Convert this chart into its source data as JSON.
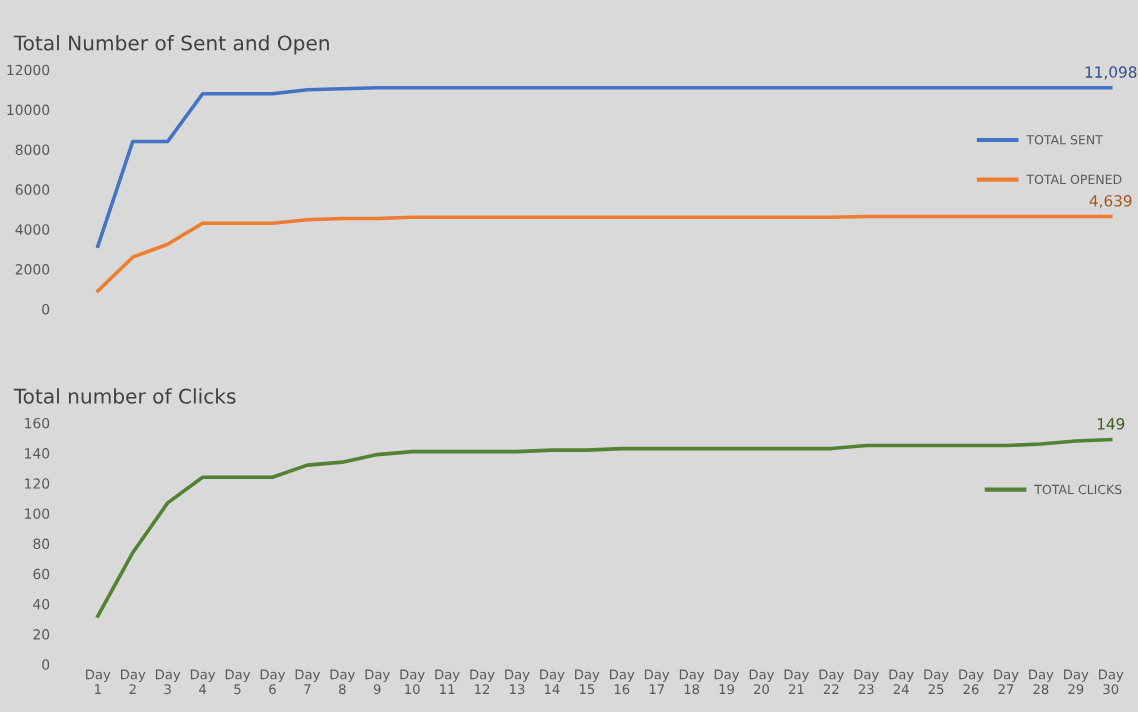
{
  "chart_data": [
    {
      "type": "line",
      "title": "Total Number of Sent and Open",
      "categories": [
        null,
        null,
        null,
        null,
        null,
        null,
        null,
        null,
        null,
        null,
        null,
        null,
        null,
        null,
        null,
        null,
        null,
        null,
        null,
        null,
        null,
        null,
        null,
        null,
        null,
        null,
        null,
        null,
        null,
        null
      ],
      "series": [
        {
          "name": "TOTAL SENT",
          "color": "#4472c4",
          "values": [
            3150,
            8400,
            8400,
            10800,
            10800,
            10800,
            11000,
            11050,
            11098,
            11098,
            11098,
            11098,
            11098,
            11098,
            11098,
            11098,
            11098,
            11098,
            11098,
            11098,
            11098,
            11098,
            11098,
            11098,
            11098,
            11098,
            11098,
            11098,
            11098,
            11098
          ],
          "value_labels": [
            null,
            null,
            null,
            null,
            null,
            null,
            null,
            null,
            null,
            null,
            null,
            null,
            null,
            null,
            null,
            null,
            null,
            null,
            null,
            null,
            null,
            null,
            null,
            null,
            null,
            null,
            null,
            null,
            null,
            "11,098"
          ]
        },
        {
          "name": "TOTAL OPENED",
          "color": "#ed7d31",
          "values": [
            900,
            2600,
            3250,
            4300,
            4300,
            4300,
            4480,
            4540,
            4540,
            4600,
            4600,
            4600,
            4600,
            4600,
            4600,
            4600,
            4600,
            4600,
            4600,
            4600,
            4600,
            4600,
            4639,
            4639,
            4639,
            4639,
            4639,
            4639,
            4639,
            4639
          ],
          "value_labels": [
            null,
            null,
            null,
            null,
            null,
            null,
            null,
            null,
            null,
            null,
            null,
            null,
            null,
            null,
            null,
            null,
            null,
            null,
            null,
            null,
            null,
            null,
            null,
            null,
            null,
            null,
            null,
            null,
            null,
            "4,639"
          ]
        }
      ],
      "ylim": [
        0,
        12000
      ],
      "yticks": [
        0,
        2000,
        4000,
        6000,
        8000,
        10000,
        12000
      ],
      "tick_labels": "y",
      "grid": false,
      "legend": "right",
      "marker": "none",
      "line_style": "solid"
    },
    {
      "type": "line",
      "title": "Total number of Clicks",
      "categories": [
        "Day 1",
        "Day 2",
        "Day 3",
        "Day 4",
        "Day 5",
        "Day 6",
        "Day 7",
        "Day 8",
        "Day 9",
        "Day 10",
        "Day 11",
        "Day 12",
        "Day 13",
        "Day 14",
        "Day 15",
        "Day 16",
        "Day 17",
        "Day 18",
        "Day 19",
        "Day 20",
        "Day 21",
        "Day 22",
        "Day 23",
        "Day 24",
        "Day 25",
        "Day 26",
        "Day 27",
        "Day 28",
        "Day 29",
        "Day 30"
      ],
      "series": [
        {
          "name": "TOTAL CLICKS",
          "color": "#548235",
          "values": [
            32,
            74,
            107,
            124,
            124,
            124,
            132,
            134,
            139,
            141,
            141,
            141,
            141,
            142,
            142,
            143,
            143,
            143,
            143,
            143,
            143,
            143,
            145,
            145,
            145,
            145,
            145,
            146,
            148,
            149
          ],
          "value_labels": [
            null,
            null,
            null,
            null,
            null,
            null,
            null,
            null,
            null,
            null,
            null,
            null,
            null,
            null,
            null,
            null,
            null,
            null,
            null,
            null,
            null,
            null,
            null,
            null,
            null,
            null,
            null,
            null,
            null,
            "149"
          ]
        }
      ],
      "ylim": [
        0,
        160
      ],
      "yticks": [
        0,
        20,
        40,
        60,
        80,
        100,
        120,
        140,
        160
      ],
      "grid": false,
      "legend": "right",
      "marker": "none",
      "line_style": "solid"
    }
  ]
}
